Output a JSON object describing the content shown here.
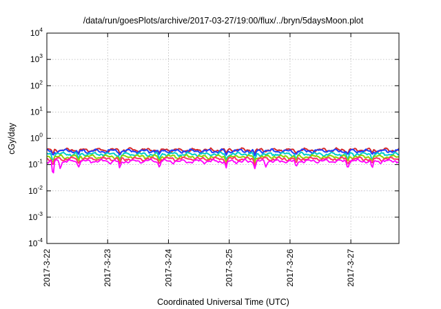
{
  "chart_data": {
    "type": "line",
    "title": "/data/run/goesPlots/archive/2017-03-27/19:00/flux/../bryn/5daysMoon.plot",
    "xlabel": "Coordinated Universal Time (UTC)",
    "ylabel": "cGy/day",
    "yscale": "log",
    "ylim": [
      0.0001,
      10000
    ],
    "y_ticks": [
      {
        "base": "10",
        "exp": "-4",
        "value": 0.0001
      },
      {
        "base": "10",
        "exp": "-3",
        "value": 0.001
      },
      {
        "base": "10",
        "exp": "-2",
        "value": 0.01
      },
      {
        "base": "10",
        "exp": "-1",
        "value": 0.1
      },
      {
        "base": "10",
        "exp": "0",
        "value": 1
      },
      {
        "base": "10",
        "exp": "1",
        "value": 10
      },
      {
        "base": "10",
        "exp": "2",
        "value": 100
      },
      {
        "base": "10",
        "exp": "3",
        "value": 1000
      },
      {
        "base": "10",
        "exp": "4",
        "value": 10000
      }
    ],
    "xlim": [
      "2017-03-22",
      "2017-03-27 19:00"
    ],
    "x_ticks": [
      "2017-3-22",
      "2017-3-23",
      "2017-3-24",
      "2017-3-25",
      "2017-3-26",
      "2017-3-27"
    ],
    "grid": true,
    "legend": "none",
    "series": [
      {
        "color": "#d62728",
        "base_value": 0.36,
        "dips": [
          [
            0.1,
            0.26
          ],
          [
            0.52,
            0.28
          ],
          [
            1.2,
            0.27
          ],
          [
            1.85,
            0.28
          ],
          [
            2.95,
            0.27
          ],
          [
            3.42,
            0.26
          ],
          [
            4.1,
            0.28
          ],
          [
            4.95,
            0.27
          ],
          [
            5.35,
            0.28
          ]
        ]
      },
      {
        "color": "#1f3fff",
        "base_value": 0.33,
        "dips": [
          [
            0.1,
            0.22
          ],
          [
            0.52,
            0.24
          ],
          [
            1.2,
            0.23
          ],
          [
            1.85,
            0.24
          ],
          [
            2.95,
            0.23
          ],
          [
            3.42,
            0.22
          ],
          [
            4.1,
            0.24
          ],
          [
            4.95,
            0.23
          ],
          [
            5.35,
            0.24
          ]
        ]
      },
      {
        "color": "#00cccc",
        "base_value": 0.25,
        "dips": [
          [
            0.1,
            0.14
          ],
          [
            0.52,
            0.17
          ],
          [
            1.2,
            0.15
          ],
          [
            1.85,
            0.16
          ],
          [
            2.95,
            0.15
          ],
          [
            3.42,
            0.14
          ],
          [
            4.1,
            0.16
          ],
          [
            4.95,
            0.15
          ],
          [
            5.35,
            0.16
          ]
        ]
      },
      {
        "color": "#8fd400",
        "base_value": 0.2,
        "dips": [
          [
            0.1,
            0.12
          ],
          [
            0.52,
            0.14
          ],
          [
            1.2,
            0.13
          ],
          [
            1.85,
            0.14
          ],
          [
            2.95,
            0.13
          ],
          [
            3.42,
            0.12
          ],
          [
            4.1,
            0.14
          ],
          [
            4.95,
            0.13
          ],
          [
            5.35,
            0.14
          ]
        ]
      },
      {
        "color": "#ff3366",
        "base_value": 0.165,
        "dips": [
          [
            0.1,
            0.09
          ],
          [
            0.52,
            0.11
          ],
          [
            1.2,
            0.1
          ],
          [
            1.85,
            0.11
          ],
          [
            2.95,
            0.1
          ],
          [
            3.42,
            0.09
          ],
          [
            4.1,
            0.11
          ],
          [
            4.95,
            0.1
          ],
          [
            5.35,
            0.11
          ]
        ]
      },
      {
        "color": "#ff00ff",
        "base_value": 0.135,
        "dips": [
          [
            0.1,
            0.03
          ],
          [
            0.22,
            0.07
          ],
          [
            0.52,
            0.08
          ],
          [
            1.2,
            0.07
          ],
          [
            1.85,
            0.08
          ],
          [
            2.95,
            0.075
          ],
          [
            3.42,
            0.07
          ],
          [
            3.6,
            0.08
          ],
          [
            4.1,
            0.08
          ],
          [
            4.95,
            0.075
          ],
          [
            5.35,
            0.07
          ]
        ]
      }
    ]
  }
}
